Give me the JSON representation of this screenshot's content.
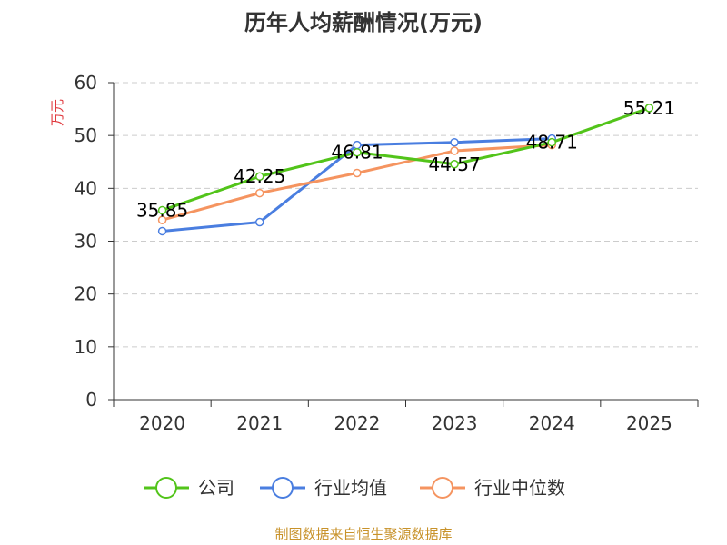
{
  "chart_data": {
    "type": "line",
    "title": "历年人均薪酬情况(万元)",
    "ylabel": "万元",
    "ylim": [
      0,
      60
    ],
    "yticks": [
      "0",
      "10",
      "20",
      "30",
      "40",
      "50",
      "60"
    ],
    "categories": [
      "2020",
      "2021",
      "2022",
      "2023",
      "2024",
      "2025"
    ],
    "series": [
      {
        "name": "公司",
        "color": "#52c41a",
        "values": [
          35.85,
          42.25,
          46.81,
          44.57,
          48.71,
          55.21
        ],
        "labels": [
          "35.85",
          "42.25",
          "46.81",
          "44.57",
          "48.71",
          "55.21"
        ]
      },
      {
        "name": "行业均值",
        "color": "#4a7ee0",
        "values": [
          31.9,
          33.6,
          48.2,
          48.7,
          49.4,
          null
        ]
      },
      {
        "name": "行业中位数",
        "color": "#f59460",
        "values": [
          34.0,
          39.1,
          42.9,
          47.1,
          48.2,
          null
        ]
      }
    ],
    "grid": true,
    "legend": "bottom"
  },
  "source": "制图数据来自恒生聚源数据库",
  "colors": {
    "axis": "#333333",
    "grid": "#cccccc",
    "ylabel": "#e0393e",
    "source": "#c8922a"
  }
}
